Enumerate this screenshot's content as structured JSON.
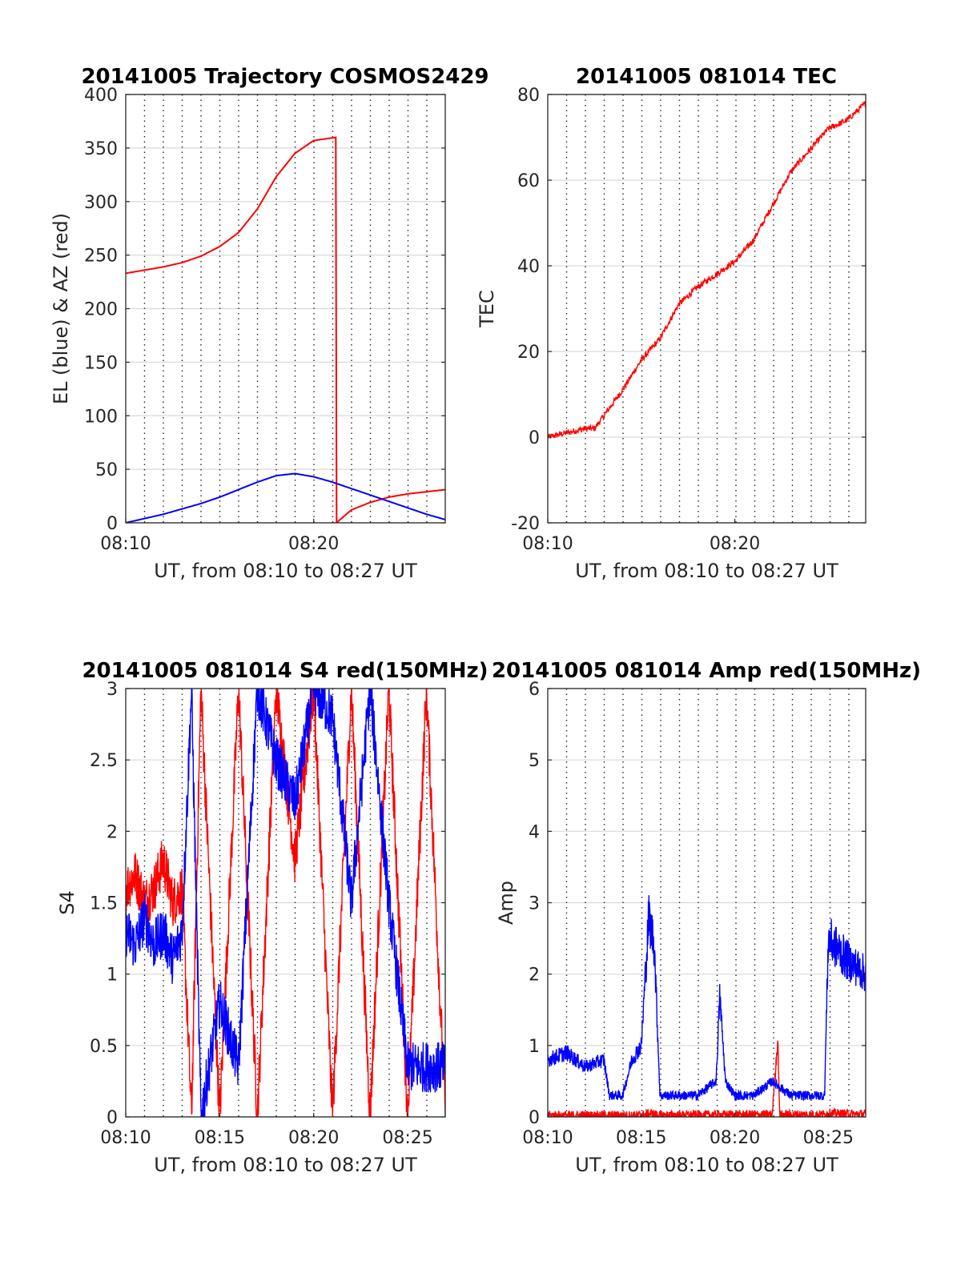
{
  "chart_data": [
    {
      "type": "line",
      "title": "20141005 Trajectory COSMOS2429",
      "xlabel": "UT, from 08:10 to 08:27 UT",
      "ylabel": "EL (blue) & AZ (red)",
      "xlim": [
        0,
        17
      ],
      "ylim": [
        0,
        400
      ],
      "xticks": [
        {
          "v": 0,
          "label": "08:10"
        },
        {
          "v": 10,
          "label": "08:20"
        }
      ],
      "yticks": [
        0,
        50,
        100,
        150,
        200,
        250,
        300,
        350,
        400
      ],
      "grid": true,
      "series": [
        {
          "color": "#ff0000",
          "x": [
            0,
            1,
            2,
            3,
            4,
            5,
            6,
            7,
            8,
            9,
            10,
            11.2,
            11.21,
            12,
            13,
            14,
            15,
            16,
            17
          ],
          "values": [
            233,
            236,
            239,
            243,
            249,
            258,
            271,
            293,
            323,
            345,
            357,
            360,
            0,
            12,
            19,
            24,
            27,
            29,
            31
          ]
        },
        {
          "color": "#0000ff",
          "x": [
            0,
            1,
            2,
            3,
            4,
            5,
            6,
            7,
            8,
            9,
            10,
            11,
            12,
            13,
            14,
            15,
            16,
            17
          ],
          "values": [
            0,
            4,
            8,
            13,
            18,
            24,
            31,
            38,
            44,
            46,
            43,
            38,
            32,
            26,
            20,
            14,
            8,
            3
          ]
        }
      ]
    },
    {
      "type": "line",
      "title": "20141005 081014 TEC",
      "xlabel": "UT, from 08:10 to 08:27 UT",
      "ylabel": "TEC",
      "xlim": [
        0,
        17
      ],
      "ylim": [
        -20,
        80
      ],
      "xticks": [
        {
          "v": 0,
          "label": "08:10"
        },
        {
          "v": 10,
          "label": "08:20"
        }
      ],
      "yticks": [
        -20,
        0,
        20,
        40,
        60,
        80
      ],
      "grid": true,
      "series": [
        {
          "color": "#ff0000",
          "x": [
            0,
            1,
            2,
            2.5,
            3,
            4,
            5,
            6,
            7,
            8,
            9,
            10,
            11,
            12,
            13,
            14,
            15,
            16,
            17
          ],
          "values": [
            0,
            1,
            2,
            2,
            5,
            11,
            18,
            23,
            31,
            35,
            38,
            41,
            46,
            54,
            62,
            67,
            72,
            74,
            78
          ]
        }
      ]
    },
    {
      "type": "line",
      "title": "20141005 081014 S4 red(150MHz)",
      "xlabel": "UT, from 08:10 to 08:27 UT",
      "ylabel": "S4",
      "xlim": [
        0,
        17
      ],
      "ylim": [
        0,
        3
      ],
      "xticks": [
        {
          "v": 0,
          "label": "08:10"
        },
        {
          "v": 5,
          "label": "08:15"
        },
        {
          "v": 10,
          "label": "08:20"
        },
        {
          "v": 15,
          "label": "08:25"
        }
      ],
      "yticks": [
        0,
        0.5,
        1,
        1.5,
        2,
        2.5,
        3
      ],
      "grid": true,
      "series": [
        {
          "color": "#ff0000",
          "x": [
            0,
            0.5,
            1,
            1.5,
            2,
            2.5,
            3,
            3.5,
            4,
            5,
            6,
            7,
            8,
            9,
            10,
            11,
            12,
            13,
            14,
            15,
            16,
            17
          ],
          "values": [
            1.6,
            1.7,
            1.5,
            1.6,
            1.8,
            1.5,
            1.6,
            0,
            3,
            0,
            3,
            0,
            3,
            1.8,
            3,
            0,
            3,
            0,
            3,
            0,
            3,
            0
          ]
        },
        {
          "color": "#0000ff",
          "x": [
            0,
            0.5,
            1,
            1.5,
            2,
            2.5,
            3,
            3.5,
            4,
            5,
            6,
            7,
            8,
            9,
            10,
            11,
            12,
            13,
            14,
            15,
            16,
            17
          ],
          "values": [
            1.3,
            1.2,
            1.4,
            1.2,
            1.3,
            1.1,
            1.3,
            3,
            0,
            0.8,
            0.35,
            3,
            2.5,
            2.2,
            3,
            2.8,
            1.5,
            3,
            1.5,
            0.35,
            0.35,
            0.35
          ]
        }
      ]
    },
    {
      "type": "line",
      "title": "20141005 081014 Amp red(150MHz)",
      "xlabel": "UT, from 08:10 to 08:27 UT",
      "ylabel": "Amp",
      "xlim": [
        0,
        17
      ],
      "ylim": [
        0,
        6
      ],
      "xticks": [
        {
          "v": 0,
          "label": "08:10"
        },
        {
          "v": 5,
          "label": "08:15"
        },
        {
          "v": 10,
          "label": "08:20"
        },
        {
          "v": 15,
          "label": "08:25"
        }
      ],
      "yticks": [
        0,
        1,
        2,
        3,
        4,
        5,
        6
      ],
      "grid": true,
      "series": [
        {
          "color": "#ff0000",
          "x": [
            0,
            5,
            5.5,
            6,
            10,
            12,
            12.3,
            12.4,
            13,
            14.8,
            15,
            16,
            17
          ],
          "values": [
            0.02,
            0.02,
            0.05,
            0.02,
            0.03,
            0.03,
            1.1,
            0.03,
            0.03,
            0.03,
            0.05,
            0.04,
            0.04
          ]
        },
        {
          "color": "#0000ff",
          "x": [
            0,
            1,
            2,
            3,
            3.3,
            4,
            4.5,
            5,
            5.4,
            5.7,
            6,
            7,
            8,
            9,
            9.2,
            9.5,
            10,
            11,
            12,
            13,
            14,
            14.8,
            15,
            16,
            17
          ],
          "values": [
            0.8,
            0.9,
            0.7,
            0.8,
            0.3,
            0.3,
            0.8,
            1.0,
            2.8,
            2.4,
            0.3,
            0.3,
            0.3,
            0.5,
            1.7,
            0.5,
            0.3,
            0.3,
            0.5,
            0.3,
            0.3,
            0.3,
            2.5,
            2.2,
            2.0
          ]
        }
      ]
    }
  ]
}
